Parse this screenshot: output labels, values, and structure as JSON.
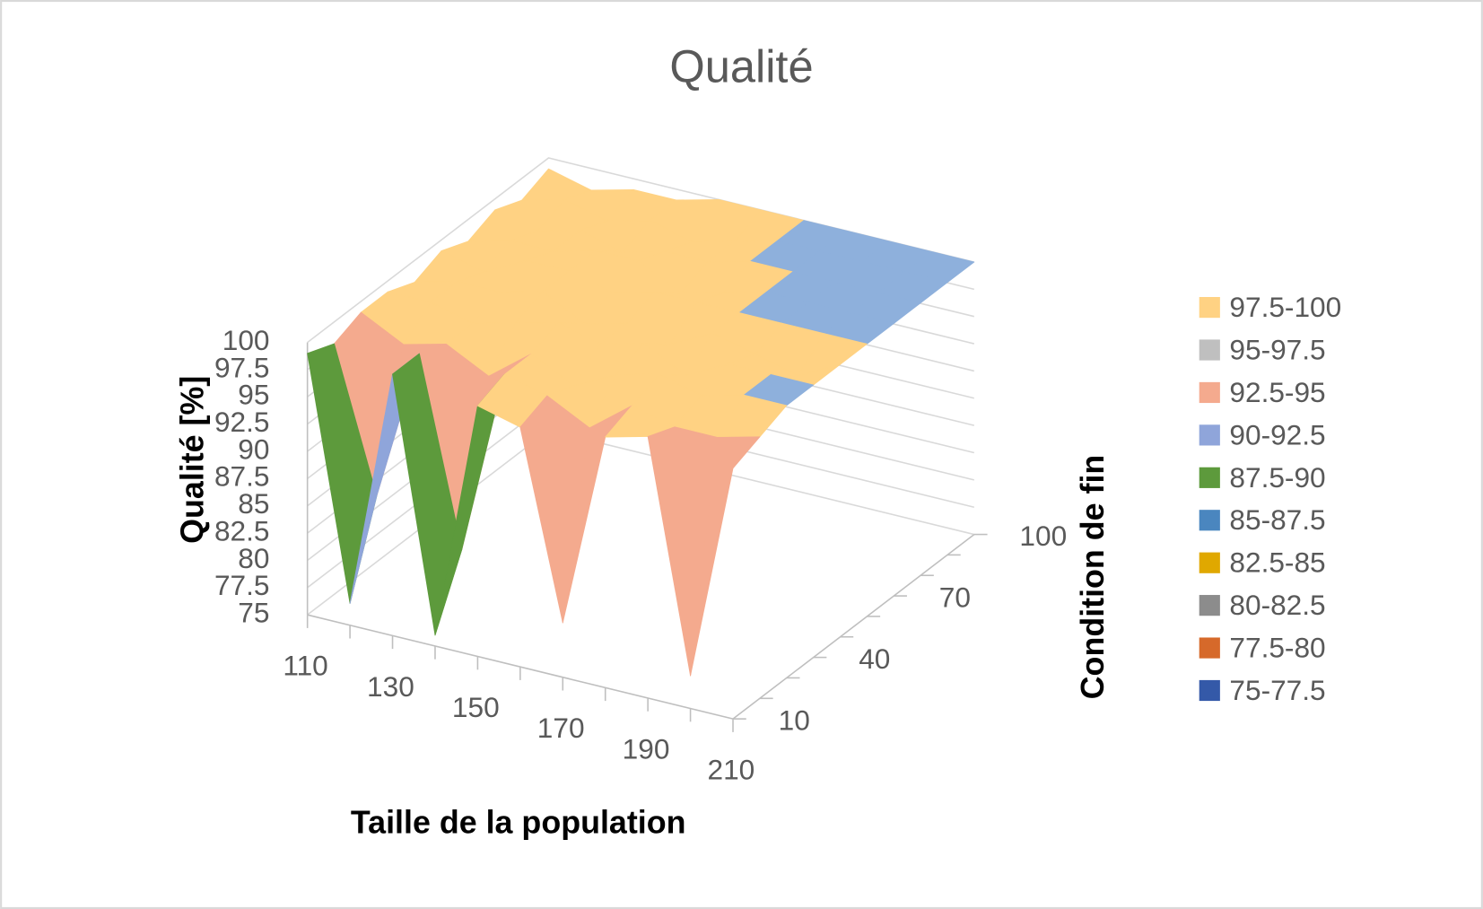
{
  "chart_data": {
    "type": "surface",
    "title": "Qualité",
    "x_label": "Taille de la population",
    "depth_label": "Condition de fin",
    "z_label": "Qualité [%]",
    "x": [
      110,
      null,
      130,
      null,
      150,
      null,
      170,
      null,
      190,
      null,
      210
    ],
    "depth": [
      10,
      null,
      null,
      40,
      null,
      null,
      70,
      null,
      null,
      100
    ],
    "zlim": [
      75,
      100
    ],
    "zticks": [
      75,
      77.5,
      80,
      82.5,
      85,
      87.5,
      90,
      92.5,
      95,
      97.5,
      100
    ],
    "z": [
      [
        99,
        77,
        99,
        76,
        98,
        97,
        80,
        98,
        99,
        78,
        98
      ],
      [
        98,
        85,
        99,
        82,
        99,
        98,
        96,
        99,
        98,
        98,
        99
      ],
      [
        99,
        97,
        98,
        96,
        99,
        97,
        99,
        100,
        99,
        100,
        100
      ],
      [
        99,
        99,
        98,
        99,
        100,
        99,
        100,
        98,
        100,
        100,
        100
      ],
      [
        98,
        99,
        99,
        100,
        98,
        99,
        98,
        100,
        99,
        98,
        100
      ],
      [
        99,
        98,
        100,
        100,
        99,
        100,
        100,
        100,
        100,
        100,
        100
      ],
      [
        98,
        99,
        99,
        100,
        100,
        98,
        99,
        100,
        100,
        100,
        100
      ],
      [
        99,
        98,
        99,
        98,
        99,
        99,
        100,
        100,
        100,
        100,
        100
      ],
      [
        98,
        99,
        98,
        99,
        98,
        99,
        100,
        100,
        100,
        100,
        100
      ],
      [
        99,
        98,
        99,
        99,
        100,
        100,
        100,
        100,
        100,
        100,
        100
      ]
    ],
    "plateau_color": "#8eb0dc",
    "bands": [
      {
        "label": "97.5-100",
        "from": 97.5,
        "to": 100,
        "color": "#ffd283"
      },
      {
        "label": "95-97.5",
        "from": 95,
        "to": 97.5,
        "color": "#bfbfbf"
      },
      {
        "label": "92.5-95",
        "from": 92.5,
        "to": 95,
        "color": "#f4aa8e"
      },
      {
        "label": "90-92.5",
        "from": 90,
        "to": 92.5,
        "color": "#8fa5da"
      },
      {
        "label": "87.5-90",
        "from": 87.5,
        "to": 90,
        "color": "#5d9a3c"
      },
      {
        "label": "85-87.5",
        "from": 85,
        "to": 87.5,
        "color": "#4a86bf"
      },
      {
        "label": "82.5-85",
        "from": 82.5,
        "to": 85,
        "color": "#e0a800"
      },
      {
        "label": "80-82.5",
        "from": 80,
        "to": 82.5,
        "color": "#8c8c8c"
      },
      {
        "label": "77.5-80",
        "from": 77.5,
        "to": 80,
        "color": "#d6692a"
      },
      {
        "label": "75-77.5",
        "from": 75,
        "to": 77.5,
        "color": "#3459a8"
      }
    ]
  }
}
